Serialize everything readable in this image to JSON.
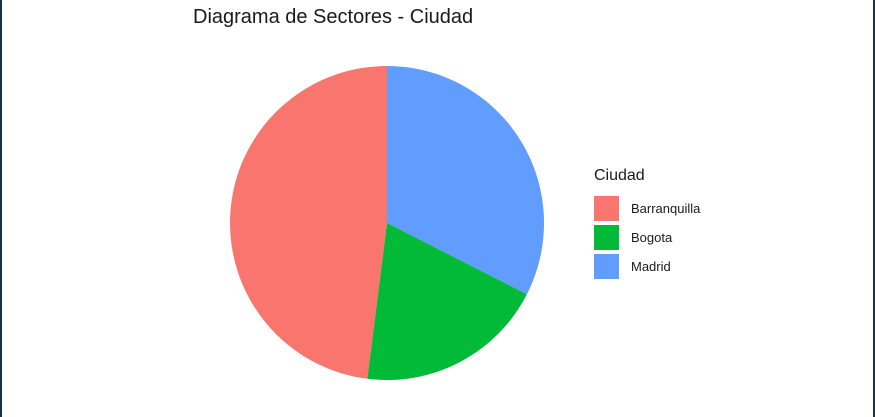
{
  "chart_data": {
    "type": "pie",
    "title": "Diagrama de Sectores - Ciudad",
    "legend_title": "Ciudad",
    "legend_position": "right",
    "categories": [
      "Barranquilla",
      "Bogota",
      "Madrid"
    ],
    "values": [
      48,
      19.5,
      32.5
    ],
    "colors": [
      "#F8766D",
      "#00BA38",
      "#619CFF"
    ],
    "start": "top",
    "direction": "counterclockwise-from-top"
  }
}
